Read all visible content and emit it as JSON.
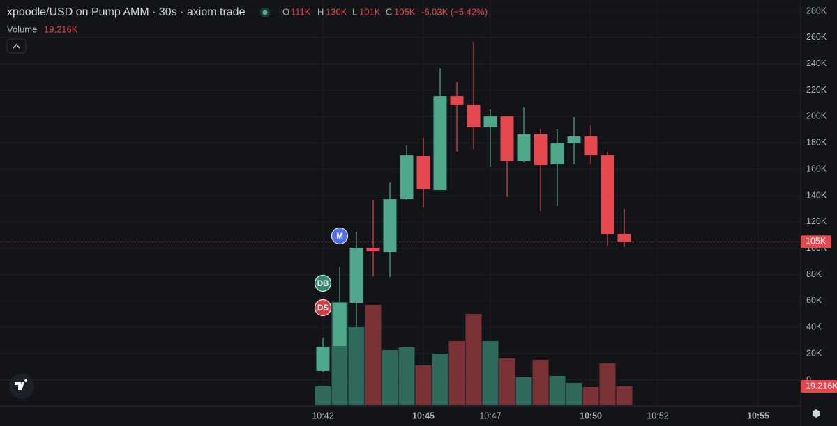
{
  "chart_data": {
    "type": "candlestick",
    "title": "xpoodle/USD on Pump AMM · 30s · axiom.trade",
    "legend": {
      "open": {
        "label": "O",
        "value": "111K"
      },
      "high": {
        "label": "H",
        "value": "130K"
      },
      "low": {
        "label": "L",
        "value": "101K"
      },
      "close": {
        "label": "C",
        "value": "105K"
      },
      "change": "-6.03K (−5.42%)"
    },
    "open": [
      6900,
      25900,
      58600,
      100400,
      97200,
      137300,
      170100,
      144200,
      215500,
      208700,
      191800,
      200200,
      165900,
      186500,
      163800,
      179600,
      184900,
      170600,
      111000
    ],
    "high": [
      32200,
      86100,
      112500,
      136300,
      150000,
      178000,
      183800,
      236700,
      226100,
      256700,
      205500,
      200200,
      207100,
      190700,
      190700,
      199700,
      193300,
      173300,
      130000
    ],
    "low": [
      5800,
      25900,
      39100,
      78700,
      78200,
      136300,
      131000,
      144200,
      173300,
      175400,
      161600,
      138900,
      165300,
      128400,
      132100,
      163800,
      163800,
      101400,
      101000
    ],
    "close": [
      25400,
      58600,
      100400,
      97700,
      137300,
      170600,
      144700,
      215500,
      208700,
      191800,
      200200,
      165900,
      186500,
      163200,
      179600,
      184900,
      170600,
      110900,
      105000
    ],
    "up_color": "#4fa88c",
    "down_color": "#e5484f",
    "volume": {
      "name": "Volume",
      "values": [
        19200,
        105300,
        79700,
        102500,
        56200,
        59100,
        40600,
        52700,
        65500,
        93200,
        65500,
        47700,
        28500,
        46300,
        29900,
        22800,
        18500,
        42700,
        19216
      ],
      "value_labels": [
        null,
        null,
        null,
        null,
        null,
        null,
        null,
        null,
        null,
        null,
        null,
        null,
        null,
        null,
        null,
        null,
        null,
        null,
        "19.216K"
      ],
      "up_color": "#2f6a5c",
      "down_color": "#7a3236"
    },
    "y2lim": [
      0,
      300000
    ],
    "last_price_label": "105K",
    "markers": [
      {
        "label": "M",
        "color": "#4d6ff0"
      },
      {
        "label": "DB",
        "color": "#2e8a6c"
      },
      {
        "label": "DS",
        "color": "#d93a3f"
      }
    ],
    "ylim": [
      0,
      280000
    ],
    "yticks": [
      {
        "value": 0,
        "label": "0"
      },
      {
        "value": 20000,
        "label": "20K"
      },
      {
        "value": 40000,
        "label": "40K"
      },
      {
        "value": 60000,
        "label": "60K"
      },
      {
        "value": 80000,
        "label": "80K"
      },
      {
        "value": 100000,
        "label": "100K"
      },
      {
        "value": 120000,
        "label": "120K"
      },
      {
        "value": 140000,
        "label": "140K"
      },
      {
        "value": 160000,
        "label": "160K"
      },
      {
        "value": 180000,
        "label": "180K"
      },
      {
        "value": 200000,
        "label": "200K"
      },
      {
        "value": 220000,
        "label": "220K"
      },
      {
        "value": 240000,
        "label": "240K"
      },
      {
        "value": 260000,
        "label": "260K"
      },
      {
        "value": 280000,
        "label": "280K"
      }
    ],
    "xticks": [
      {
        "value": 0,
        "label": "10:42"
      },
      {
        "value": 6,
        "label": "10:45"
      },
      {
        "value": 10,
        "label": "10:47"
      },
      {
        "value": 16,
        "label": "10:50"
      },
      {
        "value": 20,
        "label": "10:52"
      },
      {
        "value": 26,
        "label": "10:55"
      }
    ],
    "grid": true
  }
}
